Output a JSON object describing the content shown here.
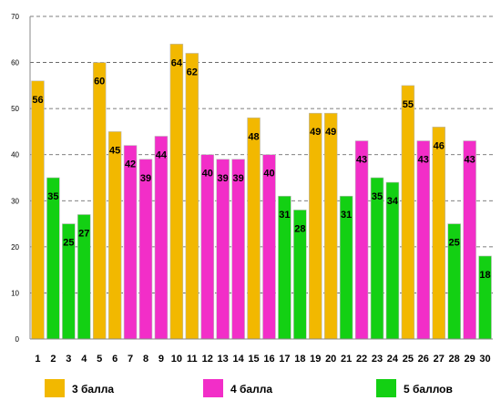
{
  "chart_data": {
    "type": "bar",
    "categories": [
      "1",
      "2",
      "3",
      "4",
      "5",
      "6",
      "7",
      "8",
      "9",
      "10",
      "11",
      "12",
      "13",
      "14",
      "15",
      "16",
      "17",
      "18",
      "19",
      "20",
      "21",
      "22",
      "23",
      "24",
      "25",
      "26",
      "27",
      "28",
      "29",
      "30"
    ],
    "values": [
      56,
      35,
      25,
      27,
      60,
      45,
      42,
      39,
      44,
      64,
      62,
      40,
      39,
      39,
      48,
      40,
      31,
      28,
      49,
      49,
      31,
      43,
      35,
      34,
      55,
      43,
      46,
      25,
      43,
      18
    ],
    "groups": [
      "3 балла",
      "5 баллов",
      "5 баллов",
      "5 баллов",
      "3 балла",
      "3 балла",
      "4 балла",
      "4 балла",
      "4 балла",
      "3 балла",
      "3 балла",
      "4 балла",
      "4 балла",
      "4 балла",
      "3 балла",
      "4 балла",
      "5 баллов",
      "5 баллов",
      "3 балла",
      "3 балла",
      "5 баллов",
      "4 балла",
      "5 баллов",
      "5 баллов",
      "3 балла",
      "4 балла",
      "3 балла",
      "5 баллов",
      "4 балла",
      "5 баллов"
    ],
    "data_labels": [
      "56",
      "35",
      "25",
      "27",
      "60",
      "45",
      "42",
      "39",
      "44",
      "64",
      "62",
      "40",
      "39",
      "39",
      "48",
      "40",
      "31",
      "28",
      "49",
      "49",
      "31",
      "43",
      "35",
      "34",
      "55",
      "43",
      "46",
      "25",
      "43",
      "18"
    ],
    "y_ticks": [
      "0",
      "10",
      "20",
      "30",
      "40",
      "50",
      "60",
      "70"
    ],
    "ylim": [
      0,
      70
    ],
    "grid": "horizontal dashed",
    "legend_position": "bottom",
    "legend": [
      {
        "name": "3 балла",
        "color": "#f2b800"
      },
      {
        "name": "4 балла",
        "color": "#f22ec8"
      },
      {
        "name": "5 баллов",
        "color": "#13d013"
      }
    ]
  }
}
